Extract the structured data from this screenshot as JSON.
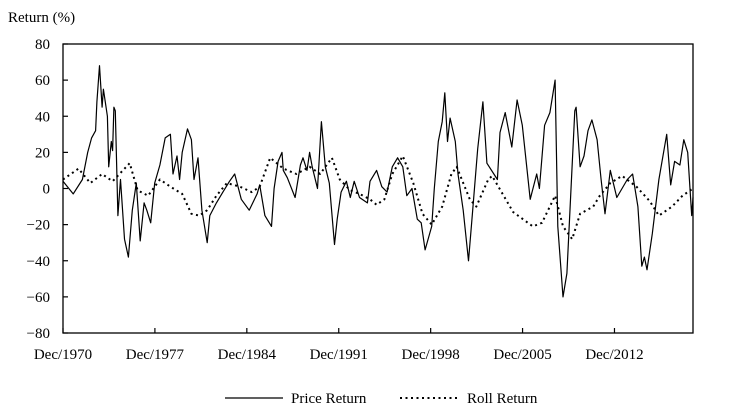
{
  "chart_data": {
    "type": "line",
    "title": "",
    "ylabel": "Return (%)",
    "xlabel": "",
    "ylim": [
      -80,
      80
    ],
    "xlim": [
      1970.92,
      2018.9
    ],
    "yticks": [
      80,
      60,
      40,
      20,
      0,
      -20,
      -40,
      -60,
      -80
    ],
    "ytick_labels": [
      "80",
      "60",
      "40",
      "20",
      "0",
      "−20",
      "−40",
      "−60",
      "−80"
    ],
    "xticks": [
      1970.92,
      1977.92,
      1984.92,
      1991.92,
      1998.92,
      2005.92,
      2012.92
    ],
    "xtick_labels": [
      "Dec/1970",
      "Dec/1977",
      "Dec/1984",
      "Dec/1991",
      "Dec/1998",
      "Dec/2005",
      "Dec/2012"
    ],
    "grid": false,
    "legend_placement": "bottom-center",
    "series": [
      {
        "name": "Price Return",
        "style": "solid",
        "color": "#000000",
        "points": [
          [
            1970.92,
            4
          ],
          [
            1971.7,
            -3
          ],
          [
            1972.4,
            5
          ],
          [
            1972.8,
            20
          ],
          [
            1973.1,
            28
          ],
          [
            1973.4,
            32
          ],
          [
            1973.5,
            48
          ],
          [
            1973.7,
            68
          ],
          [
            1973.9,
            45
          ],
          [
            1974.0,
            55
          ],
          [
            1974.3,
            40
          ],
          [
            1974.4,
            12
          ],
          [
            1974.6,
            26
          ],
          [
            1974.7,
            21
          ],
          [
            1974.8,
            45
          ],
          [
            1974.9,
            43
          ],
          [
            1975.1,
            -15
          ],
          [
            1975.3,
            5
          ],
          [
            1975.6,
            -28
          ],
          [
            1975.9,
            -38
          ],
          [
            1976.2,
            -12
          ],
          [
            1976.5,
            3
          ],
          [
            1976.8,
            -29
          ],
          [
            1977.1,
            -8
          ],
          [
            1977.3,
            -12
          ],
          [
            1977.6,
            -19
          ],
          [
            1977.9,
            3
          ],
          [
            1978.3,
            13
          ],
          [
            1978.7,
            28
          ],
          [
            1979.1,
            30
          ],
          [
            1979.3,
            8
          ],
          [
            1979.6,
            18
          ],
          [
            1979.8,
            5
          ],
          [
            1980.0,
            20
          ],
          [
            1980.4,
            33
          ],
          [
            1980.7,
            27
          ],
          [
            1980.9,
            5
          ],
          [
            1981.2,
            17
          ],
          [
            1981.5,
            -12
          ],
          [
            1981.9,
            -30
          ],
          [
            1982.1,
            -15
          ],
          [
            1982.6,
            -8
          ],
          [
            1983.1,
            -2
          ],
          [
            1983.6,
            4
          ],
          [
            1984.0,
            8
          ],
          [
            1984.5,
            -6
          ],
          [
            1985.1,
            -12
          ],
          [
            1985.7,
            -3
          ],
          [
            1985.9,
            2
          ],
          [
            1986.3,
            -15
          ],
          [
            1986.8,
            -21
          ],
          [
            1987.0,
            0
          ],
          [
            1987.3,
            15
          ],
          [
            1987.6,
            20
          ],
          [
            1987.7,
            10
          ],
          [
            1988.0,
            6
          ],
          [
            1988.6,
            -5
          ],
          [
            1989.0,
            13
          ],
          [
            1989.2,
            17
          ],
          [
            1989.5,
            10
          ],
          [
            1989.7,
            20
          ],
          [
            1989.9,
            12
          ],
          [
            1990.3,
            0
          ],
          [
            1990.6,
            37
          ],
          [
            1990.9,
            12
          ],
          [
            1991.2,
            3
          ],
          [
            1991.6,
            -31
          ],
          [
            1991.8,
            -17
          ],
          [
            1992.1,
            -2
          ],
          [
            1992.5,
            4
          ],
          [
            1992.8,
            -5
          ],
          [
            1993.1,
            4
          ],
          [
            1993.5,
            -5
          ],
          [
            1994.1,
            -8
          ],
          [
            1994.3,
            4
          ],
          [
            1994.8,
            10
          ],
          [
            1995.2,
            1
          ],
          [
            1995.6,
            -2
          ],
          [
            1996.0,
            12
          ],
          [
            1996.4,
            17
          ],
          [
            1996.8,
            12
          ],
          [
            1997.1,
            -4
          ],
          [
            1997.5,
            0
          ],
          [
            1997.9,
            -17
          ],
          [
            1998.2,
            -19
          ],
          [
            1998.5,
            -34
          ],
          [
            1999.0,
            -21
          ],
          [
            1999.2,
            0
          ],
          [
            1999.5,
            26
          ],
          [
            1999.8,
            37
          ],
          [
            2000.0,
            53
          ],
          [
            2000.2,
            26
          ],
          [
            2000.4,
            39
          ],
          [
            2000.8,
            26
          ],
          [
            2001.0,
            8
          ],
          [
            2001.4,
            -12
          ],
          [
            2001.8,
            -40
          ],
          [
            2002.1,
            -14
          ],
          [
            2002.5,
            22
          ],
          [
            2002.9,
            48
          ],
          [
            2003.2,
            14
          ],
          [
            2004.0,
            5
          ],
          [
            2004.2,
            31
          ],
          [
            2004.6,
            42
          ],
          [
            2005.1,
            23
          ],
          [
            2005.5,
            49
          ],
          [
            2005.9,
            35
          ],
          [
            2006.5,
            -6
          ],
          [
            2007.0,
            8
          ],
          [
            2007.2,
            0
          ],
          [
            2007.6,
            35
          ],
          [
            2008.0,
            42
          ],
          [
            2008.4,
            60
          ],
          [
            2008.6,
            -21
          ],
          [
            2009.0,
            -60
          ],
          [
            2009.3,
            -47
          ],
          [
            2009.9,
            43
          ],
          [
            2010.0,
            45
          ],
          [
            2010.3,
            12
          ],
          [
            2010.6,
            18
          ],
          [
            2010.9,
            32
          ],
          [
            2011.2,
            38
          ],
          [
            2011.6,
            27
          ],
          [
            2011.9,
            5
          ],
          [
            2012.2,
            -14
          ],
          [
            2012.6,
            10
          ],
          [
            2013.1,
            -5
          ],
          [
            2013.9,
            5
          ],
          [
            2014.3,
            8
          ],
          [
            2014.7,
            -10
          ],
          [
            2015.0,
            -43
          ],
          [
            2015.2,
            -38
          ],
          [
            2015.4,
            -45
          ],
          [
            2015.8,
            -25
          ],
          [
            2016.3,
            5
          ],
          [
            2016.9,
            30
          ],
          [
            2017.2,
            2
          ],
          [
            2017.5,
            15
          ],
          [
            2017.9,
            13
          ],
          [
            2018.2,
            27
          ],
          [
            2018.5,
            20
          ],
          [
            2018.8,
            -15
          ],
          [
            2018.9,
            -5
          ]
        ]
      },
      {
        "name": "Roll Return",
        "style": "dotted",
        "color": "#000000",
        "points": [
          [
            1970.92,
            5
          ],
          [
            1972.1,
            11
          ],
          [
            1973.0,
            3
          ],
          [
            1973.9,
            8
          ],
          [
            1974.7,
            4
          ],
          [
            1976.0,
            14
          ],
          [
            1976.6,
            -1
          ],
          [
            1977.4,
            -4
          ],
          [
            1978.3,
            5
          ],
          [
            1979.1,
            1
          ],
          [
            1980.0,
            -3
          ],
          [
            1980.7,
            -14
          ],
          [
            1981.3,
            -15
          ],
          [
            1981.9,
            -12
          ],
          [
            1982.6,
            -4
          ],
          [
            1983.4,
            3
          ],
          [
            1984.4,
            1
          ],
          [
            1985.3,
            -2
          ],
          [
            1985.9,
            1
          ],
          [
            1986.7,
            17
          ],
          [
            1987.7,
            11
          ],
          [
            1988.7,
            8
          ],
          [
            1989.7,
            12
          ],
          [
            1990.5,
            8
          ],
          [
            1991.4,
            17
          ],
          [
            1992.0,
            5
          ],
          [
            1992.8,
            -1
          ],
          [
            1993.5,
            -3
          ],
          [
            1994.3,
            -6
          ],
          [
            1994.8,
            -9
          ],
          [
            1995.4,
            -6
          ],
          [
            1996.0,
            8
          ],
          [
            1996.8,
            18
          ],
          [
            1997.6,
            3
          ],
          [
            1998.3,
            -14
          ],
          [
            1999.0,
            -20
          ],
          [
            1999.8,
            -10
          ],
          [
            2000.5,
            8
          ],
          [
            2000.9,
            12
          ],
          [
            2001.9,
            -6
          ],
          [
            2002.4,
            -10
          ],
          [
            2003.3,
            5
          ],
          [
            2003.6,
            7
          ],
          [
            2005.2,
            -13
          ],
          [
            2006.7,
            -21
          ],
          [
            2007.4,
            -19
          ],
          [
            2008.4,
            -4
          ],
          [
            2009.0,
            -21
          ],
          [
            2009.7,
            -28
          ],
          [
            2010.3,
            -14
          ],
          [
            2011.3,
            -10
          ],
          [
            2011.8,
            -4
          ],
          [
            2012.6,
            3
          ],
          [
            2013.5,
            7
          ],
          [
            2014.6,
            1
          ],
          [
            2015.6,
            -7
          ],
          [
            2016.3,
            -15
          ],
          [
            2017.3,
            -10
          ],
          [
            2018.1,
            -4
          ],
          [
            2018.9,
            0
          ]
        ]
      }
    ]
  }
}
